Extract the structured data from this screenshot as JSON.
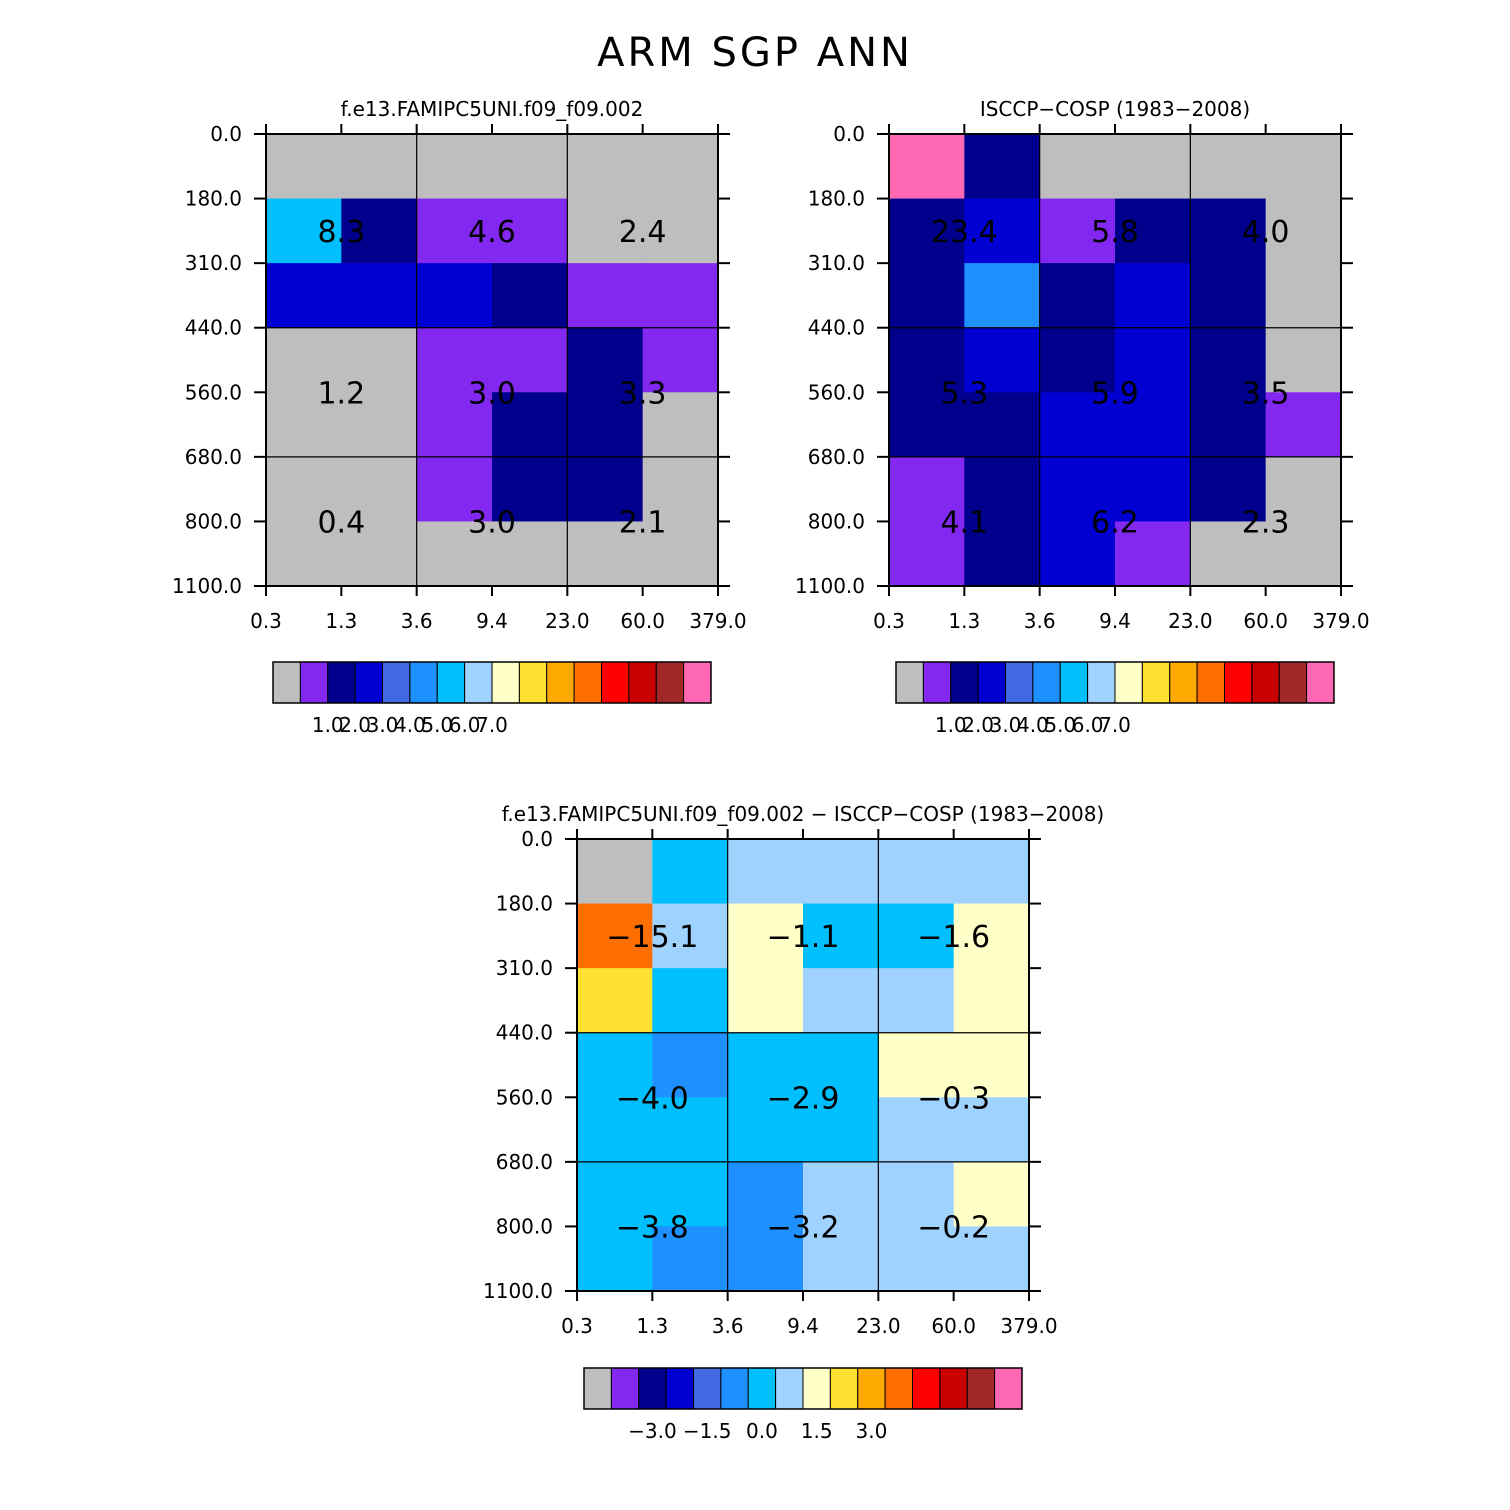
{
  "title": "ARM SGP ANN",
  "colors": {
    "palette": [
      "#bebebe",
      "#8228f0",
      "#00008c",
      "#0000d2",
      "#4169e1",
      "#1e90ff",
      "#00bfff",
      "#a0d2ff",
      "#ffffc8",
      "#ffe132",
      "#ffaa00",
      "#ff6e00",
      "#ff0000",
      "#c80000",
      "#a02828",
      "#ff69b4"
    ]
  },
  "chart_data": [
    {
      "type": "heatmap",
      "title": "f.e13.FAMIPC5UNI.f09_f09.002",
      "x_tick_labels": [
        "0.3",
        "1.3",
        "3.6",
        "9.4",
        "23.0",
        "60.0",
        "379.0"
      ],
      "y_tick_labels": [
        "0.0",
        "180.0",
        "310.0",
        "440.0",
        "560.0",
        "680.0",
        "800.0",
        "1100.0"
      ],
      "grid": true,
      "cell_color_index": [
        [
          0,
          0,
          0,
          0,
          0,
          0
        ],
        [
          6,
          2,
          1,
          1,
          0,
          0
        ],
        [
          3,
          3,
          3,
          2,
          1,
          1
        ],
        [
          0,
          0,
          1,
          1,
          2,
          1
        ],
        [
          0,
          0,
          1,
          2,
          2,
          0
        ],
        [
          0,
          0,
          1,
          2,
          2,
          0
        ],
        [
          0,
          0,
          0,
          0,
          0,
          0
        ]
      ],
      "block_values": [
        [
          "8.3",
          "4.6",
          "2.4"
        ],
        [
          "1.2",
          "3.0",
          "3.3"
        ],
        [
          "0.4",
          "3.0",
          "2.1"
        ]
      ],
      "colorbar_labels": [
        "1.0",
        "2.0",
        "3.0",
        "4.0",
        "5.0",
        "6.0",
        "7.0"
      ]
    },
    {
      "type": "heatmap",
      "title": "ISCCP−COSP (1983−2008)",
      "x_tick_labels": [
        "0.3",
        "1.3",
        "3.6",
        "9.4",
        "23.0",
        "60.0",
        "379.0"
      ],
      "y_tick_labels": [
        "0.0",
        "180.0",
        "310.0",
        "440.0",
        "560.0",
        "680.0",
        "800.0",
        "1100.0"
      ],
      "grid": true,
      "cell_color_index": [
        [
          15,
          2,
          0,
          0,
          0,
          0
        ],
        [
          2,
          3,
          1,
          2,
          2,
          0
        ],
        [
          2,
          5,
          2,
          3,
          2,
          0
        ],
        [
          2,
          3,
          2,
          3,
          2,
          0
        ],
        [
          2,
          2,
          3,
          3,
          2,
          1
        ],
        [
          1,
          2,
          3,
          3,
          2,
          0
        ],
        [
          1,
          2,
          3,
          1,
          0,
          0
        ]
      ],
      "block_values": [
        [
          "23.4",
          "5.8",
          "4.0"
        ],
        [
          "5.3",
          "5.9",
          "3.5"
        ],
        [
          "4.1",
          "6.2",
          "2.3"
        ]
      ],
      "colorbar_labels": [
        "1.0",
        "2.0",
        "3.0",
        "4.0",
        "5.0",
        "6.0",
        "7.0"
      ]
    },
    {
      "type": "heatmap",
      "title": "f.e13.FAMIPC5UNI.f09_f09.002 − ISCCP−COSP (1983−2008)",
      "x_tick_labels": [
        "0.3",
        "1.3",
        "3.6",
        "9.4",
        "23.0",
        "60.0",
        "379.0"
      ],
      "y_tick_labels": [
        "0.0",
        "180.0",
        "310.0",
        "440.0",
        "560.0",
        "680.0",
        "800.0",
        "1100.0"
      ],
      "grid": true,
      "cell_color_index": [
        [
          0,
          6,
          7,
          7,
          7,
          7
        ],
        [
          11,
          7,
          8,
          6,
          6,
          8
        ],
        [
          9,
          6,
          8,
          7,
          7,
          8
        ],
        [
          6,
          5,
          6,
          6,
          8,
          8
        ],
        [
          6,
          6,
          6,
          6,
          7,
          7
        ],
        [
          6,
          6,
          5,
          7,
          7,
          8
        ],
        [
          6,
          5,
          5,
          7,
          7,
          7
        ]
      ],
      "block_values": [
        [
          "−15.1",
          "−1.1",
          "−1.6"
        ],
        [
          "−4.0",
          "−2.9",
          "−0.3"
        ],
        [
          "−3.8",
          "−3.2",
          "−0.2"
        ]
      ],
      "colorbar_labels": [
        "−3.0",
        "−1.5",
        "0.0",
        "1.5",
        "3.0"
      ]
    }
  ]
}
